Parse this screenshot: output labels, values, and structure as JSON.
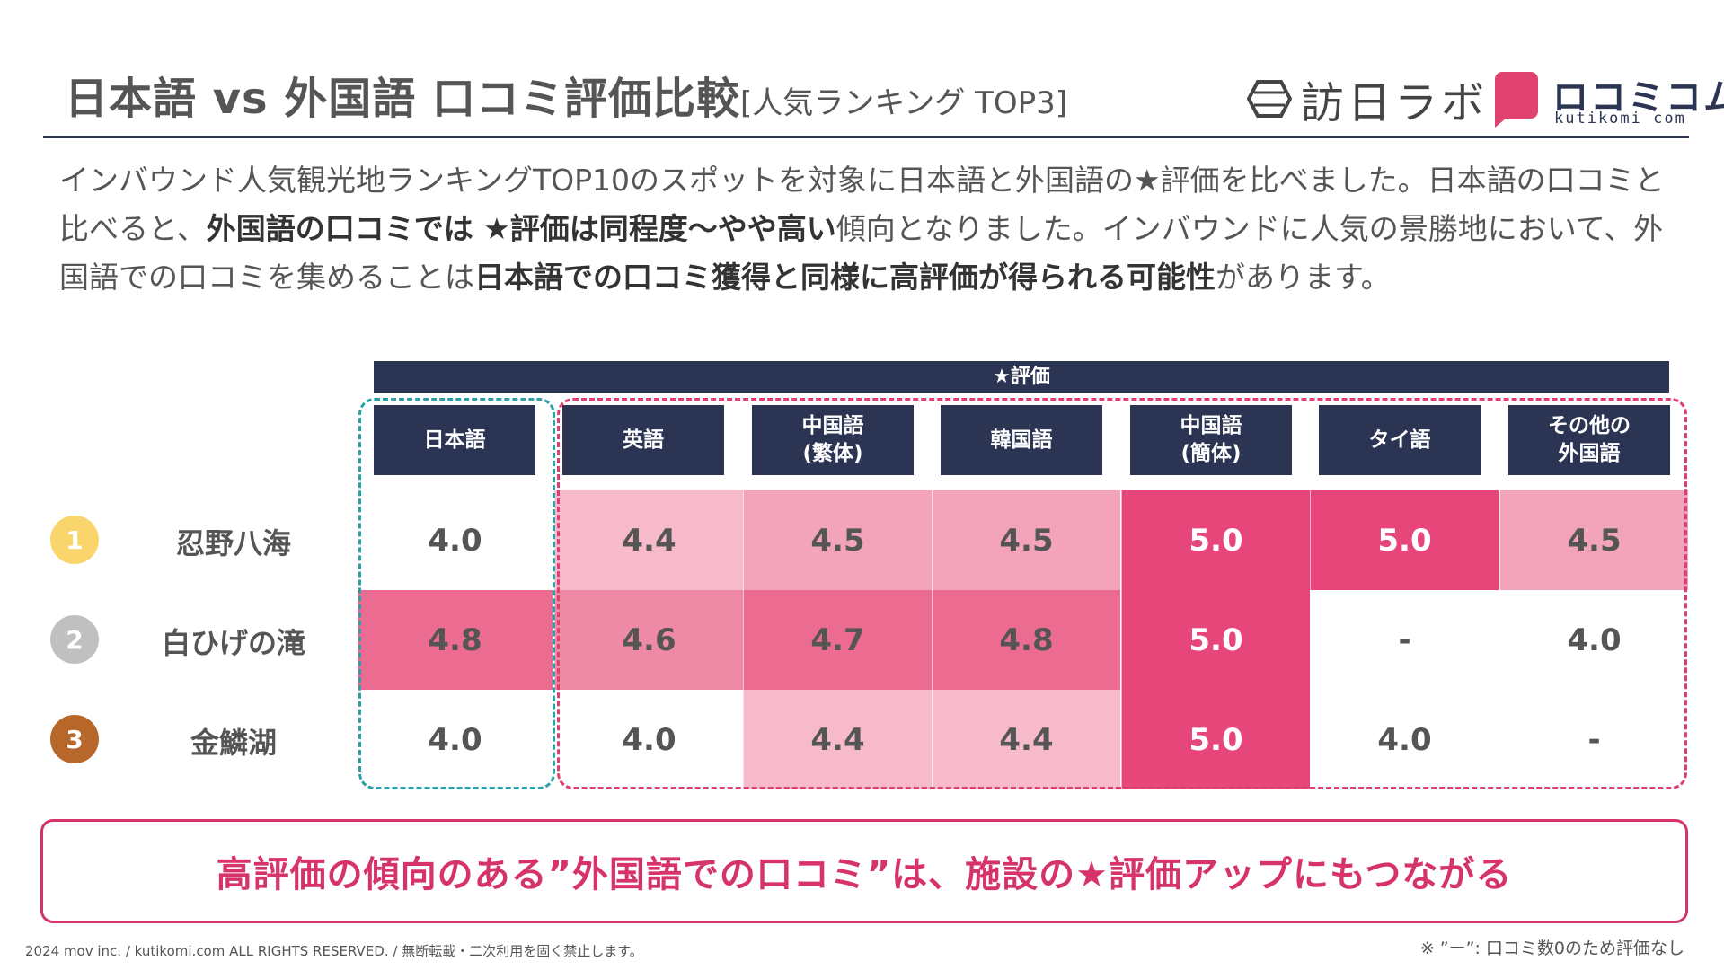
{
  "header": {
    "title_main": "日本語 vs 外国語 口コミ評価比較",
    "title_sub": "[人気ランキング TOP3]",
    "logo_houjin": "訪日ラボ",
    "logo_kutikomi_jp": "ロコミコム",
    "logo_kutikomi_en": "kutikomi com",
    "accent_color": "#2b3553",
    "brand_pink": "#e0436f"
  },
  "intro": {
    "p1": "インバウンド人気観光地ランキングTOP10のスポットを対象に日本語と外国語の★評価を比べました。日本語の口コミと比べると、",
    "b1": "外国語の口コミでは ★評価は同程度〜やや高い",
    "p2": "傾向となりました。インバウンドに人気の景勝地において、外国語での口コミを集めることは",
    "b2": "日本語での口コミ獲得と同様に高評価が得られる可能性",
    "p3": "があります。"
  },
  "table": {
    "group_label": "★評価",
    "columns": [
      "日本語",
      "英語",
      "中国語\n(繁体)",
      "韓国語",
      "中国語\n(簡体)",
      "タイ語",
      "その他の\n外国語"
    ],
    "rows": [
      {
        "rank": "1",
        "rank_color": "#f9d56b",
        "spot": "忍野八海",
        "values": [
          "4.0",
          "4.4",
          "4.5",
          "4.5",
          "5.0",
          "5.0",
          "4.5"
        ],
        "levels": [
          0,
          1,
          2,
          2,
          5,
          5,
          2
        ]
      },
      {
        "rank": "2",
        "rank_color": "#c0c0c0",
        "spot": "白ひげの滝",
        "values": [
          "4.8",
          "4.6",
          "4.7",
          "4.8",
          "5.0",
          "-",
          "4.0"
        ],
        "levels": [
          4,
          3,
          4,
          4,
          5,
          -1,
          0
        ]
      },
      {
        "rank": "3",
        "rank_color": "#b8672a",
        "spot": "金鱗湖",
        "values": [
          "4.0",
          "4.0",
          "4.4",
          "4.4",
          "5.0",
          "4.0",
          "-"
        ],
        "levels": [
          0,
          0,
          1,
          1,
          5,
          0,
          -1
        ]
      }
    ]
  },
  "callout": "高評価の傾向のある”外国語での口コミ”は、施設の★評価アップにもつながる",
  "footer": "2024 mov inc. / kutikomi.com ALL RIGHTS RESERVED. / 無断転載・二次利用を固く禁止します。",
  "note": "※ ”ー”: 口コミ数0のため評価なし"
}
